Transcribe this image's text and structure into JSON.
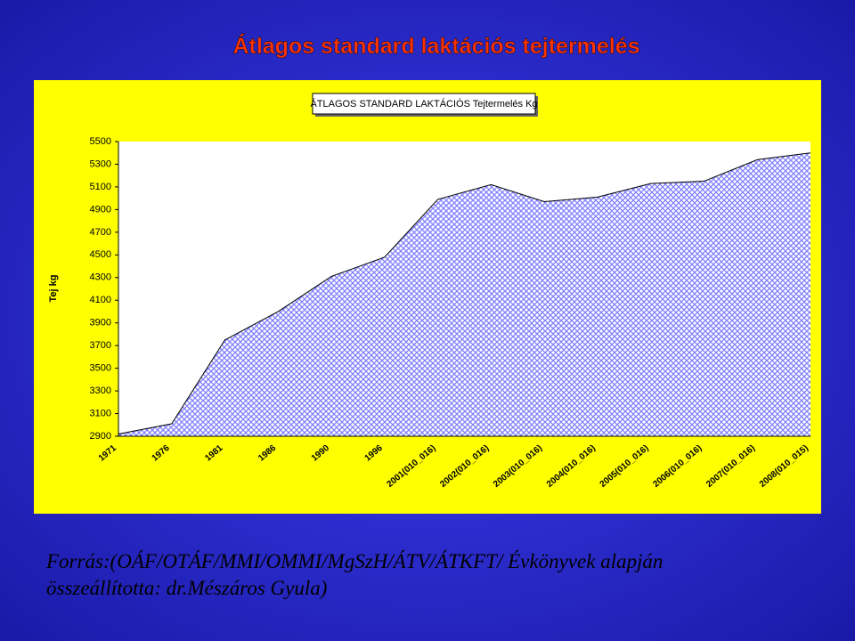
{
  "slide_title": "Átlagos standard laktációs tejtermelés",
  "footer": [
    "Forrás:(OÁF/OTÁF/MMI/OMMI/MgSzH/ÁTV/ÁTKFT/ Évkönyvek alapján",
    "összeállította: dr.Mészáros Gyula)"
  ],
  "chart_data": {
    "type": "area",
    "y_label": "Tej kg",
    "categories": [
      "1971",
      "1976",
      "1981",
      "1986",
      "1990",
      "1996",
      "2001(010_016)",
      "2002(010_016)",
      "2003(010_016)",
      "2004(010_016)",
      "2005(010_016)",
      "2006(010_016)",
      "2007(010_016)",
      "2008(010_015)"
    ],
    "series": [
      {
        "name": "ÁTLAGOS STANDARD LAKTÁCIÓS Tejtermelés Kg",
        "color": "#8080ff",
        "values": [
          2920,
          3010,
          3750,
          4000,
          4310,
          4480,
          4990,
          5120,
          4970,
          5010,
          5130,
          5150,
          5340,
          5400
        ]
      }
    ],
    "ylim": [
      2900,
      5500
    ],
    "yticks": [
      2900,
      3100,
      3300,
      3500,
      3700,
      3900,
      4100,
      4300,
      4500,
      4700,
      4900,
      5100,
      5300,
      5500
    ]
  }
}
